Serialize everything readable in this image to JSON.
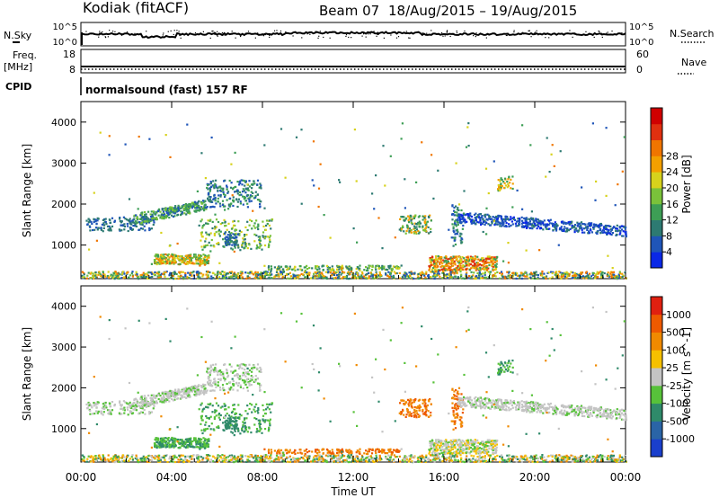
{
  "header": {
    "station": "Kodiak (fitACF)",
    "beam": "Beam 07",
    "dates": "18/Aug/2015 – 19/Aug/2015"
  },
  "status_panel": {
    "nsky_label": "N.Sky",
    "nsearch_label": "N.Search",
    "freq_label": "Freq.",
    "freq_unit": "[MHz]",
    "nave_label": "Nave",
    "cpid_label": "CPID",
    "cpid_text": "normalsound (fast) 157 RF",
    "noise_ticks": [
      "10^5",
      "10^0"
    ],
    "noise_ticks_right": [
      "10^5",
      "10^0"
    ],
    "freq_ticks": [
      "18",
      "8"
    ],
    "nave_ticks": [
      "60",
      "0"
    ]
  },
  "x_axis": {
    "label": "Time UT",
    "ticks": [
      "00:00",
      "04:00",
      "08:00",
      "12:00",
      "16:00",
      "20:00",
      "00:00"
    ]
  },
  "chart_data": [
    {
      "type": "heatmap",
      "quantity": "power",
      "ylabel": "Slant Range [km]",
      "y_ticks": [
        1000,
        2000,
        3000,
        4000
      ],
      "ylim": [
        180,
        4500
      ],
      "xlim_hours": [
        0,
        24
      ],
      "colorbar": {
        "label": "Power [dB]",
        "ticks": [
          "4",
          "8",
          "12",
          "16",
          "20",
          "24",
          "28"
        ],
        "colors": [
          "#0a28e6",
          "#1f55b8",
          "#2d7a72",
          "#3d9e55",
          "#7ac23a",
          "#d7d21c",
          "#f3a000",
          "#f07500",
          "#e03010",
          "#d00000"
        ]
      }
    },
    {
      "type": "heatmap",
      "quantity": "velocity",
      "ylabel": "Slant Range [km]",
      "y_ticks": [
        1000,
        2000,
        3000,
        4000
      ],
      "ylim": [
        180,
        4500
      ],
      "xlim_hours": [
        0,
        24
      ],
      "colorbar": {
        "label": "Velocity [m s^-1]",
        "ticks": [
          "1000",
          "500",
          "100",
          "25",
          "-25",
          "-100",
          "-500",
          "-1000"
        ],
        "colors": [
          "#1a3fcc",
          "#2a64a6",
          "#2f8a6a",
          "#57c23a",
          "#c4c4c4",
          "#f6c000",
          "#f08a00",
          "#ee5a00",
          "#e02010"
        ]
      }
    }
  ]
}
